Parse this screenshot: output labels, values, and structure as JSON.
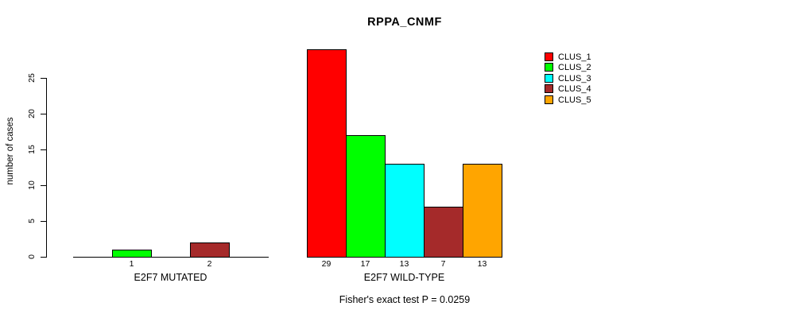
{
  "chart_data": {
    "type": "bar",
    "title": "RPPA_CNMF",
    "xlabel": "",
    "ylabel": "number of cases",
    "annotation": "Fisher's exact test P = 0.0259",
    "ylim": [
      0,
      29
    ],
    "yticks": [
      0,
      5,
      10,
      15,
      20,
      25
    ],
    "grid": false,
    "legend_position": "top-right",
    "bar_label_rule": "count shown under each bar only when value > 0",
    "categories": [
      "E2F7 MUTATED",
      "E2F7 WILD-TYPE"
    ],
    "series": [
      {
        "name": "CLUS_1",
        "color": "#ff0000",
        "values": [
          0,
          29
        ]
      },
      {
        "name": "CLUS_2",
        "color": "#00ff00",
        "values": [
          1,
          17
        ]
      },
      {
        "name": "CLUS_3",
        "color": "#00ffff",
        "values": [
          0,
          13
        ]
      },
      {
        "name": "CLUS_4",
        "color": "#a52a2a",
        "values": [
          2,
          7
        ]
      },
      {
        "name": "CLUS_5",
        "color": "#ffa500",
        "values": [
          0,
          13
        ]
      }
    ]
  },
  "colors": {
    "background": "#ffffff",
    "axis": "#000000",
    "text": "#000000"
  }
}
